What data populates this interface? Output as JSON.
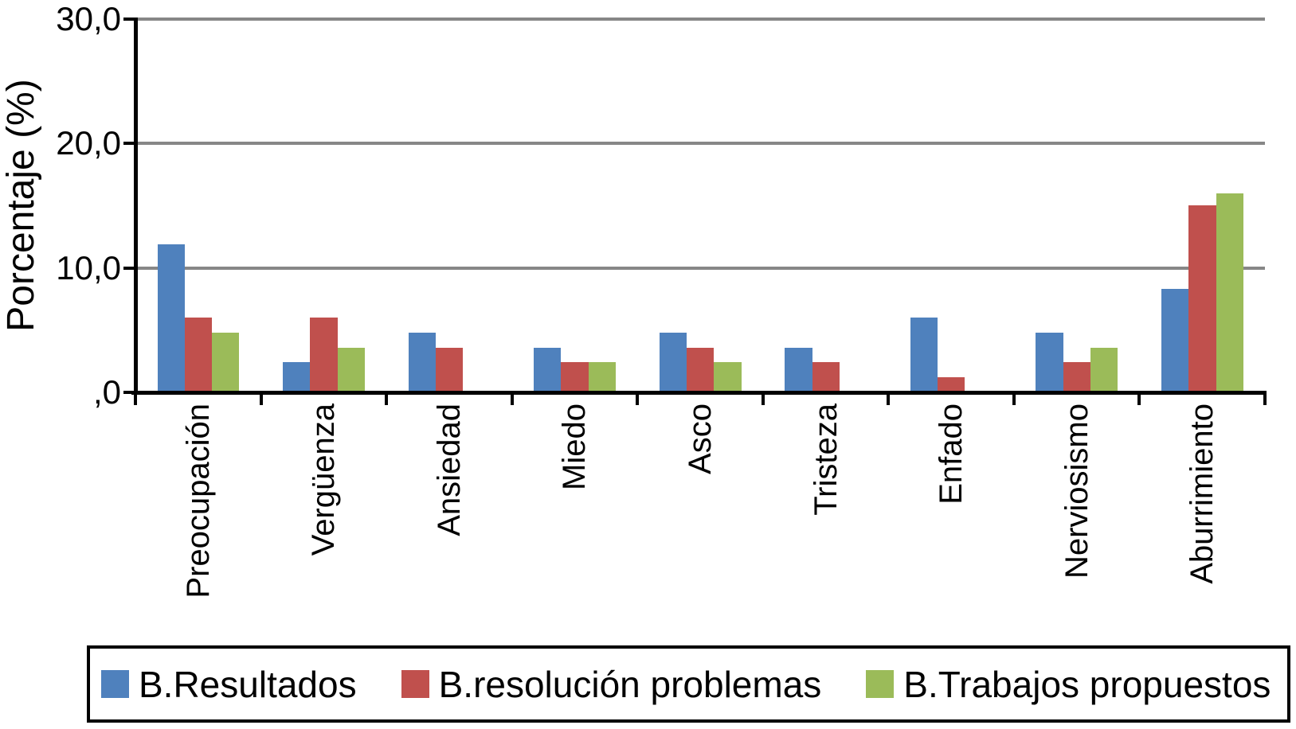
{
  "chart_data": {
    "type": "bar",
    "title": "",
    "ylabel": "Porcentaje (%)",
    "xlabel": "",
    "ylim": [
      0,
      30
    ],
    "grid": "horizontal",
    "gridline_color": "#878787",
    "axis_color": "#000000",
    "legend_position": "bottom",
    "decimal_separator": ",",
    "yticks": [
      {
        "value": 0,
        "label": ",0"
      },
      {
        "value": 10,
        "label": "10,0"
      },
      {
        "value": 20,
        "label": "20,0"
      },
      {
        "value": 30,
        "label": "30,0"
      }
    ],
    "categories": [
      "Preocupación",
      "Vergüenza",
      "Ansiedad",
      "Miedo",
      "Asco",
      "Tristeza",
      "Enfado",
      "Nerviosismo",
      "Aburrimiento"
    ],
    "series": [
      {
        "name": "B.Resultados",
        "color": "#4F81BD",
        "values": [
          11.9,
          2.4,
          4.8,
          3.6,
          4.8,
          3.6,
          6.0,
          4.8,
          8.3
        ]
      },
      {
        "name": "B.resolución problemas",
        "color": "#C0504D",
        "values": [
          6.0,
          6.0,
          3.6,
          2.4,
          3.6,
          2.4,
          1.2,
          2.4,
          15.0
        ]
      },
      {
        "name": "B.Trabajos propuestos",
        "color": "#9BBB59",
        "values": [
          4.8,
          3.6,
          0,
          2.4,
          2.4,
          0,
          0,
          3.6,
          16.0
        ]
      }
    ]
  }
}
